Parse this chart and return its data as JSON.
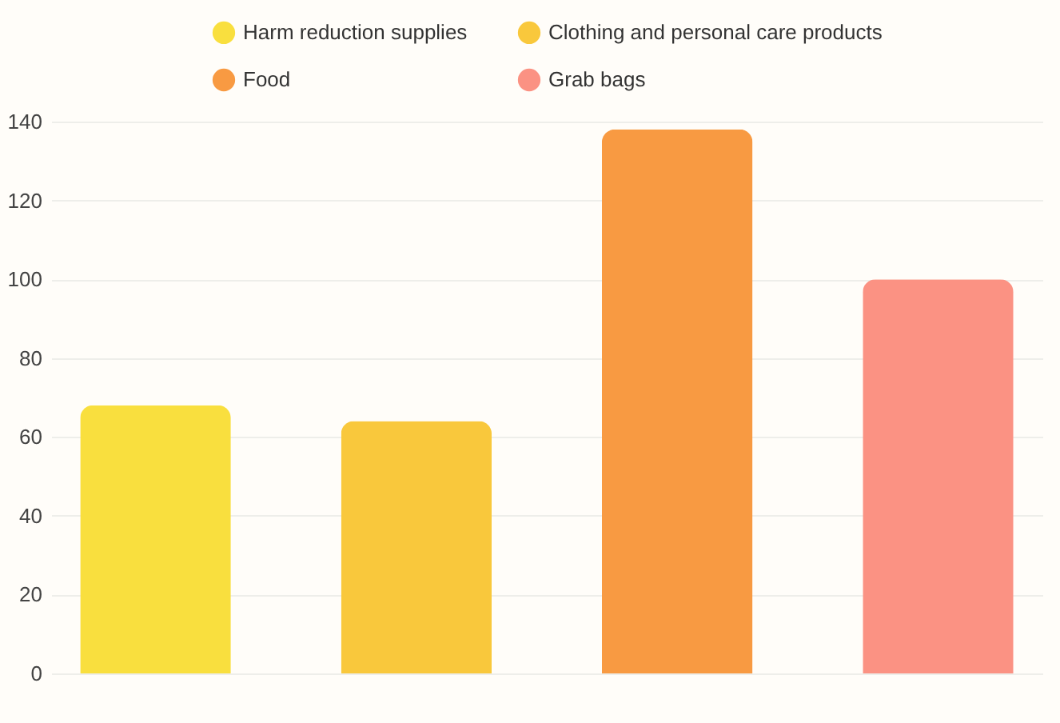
{
  "chart_data": {
    "type": "bar",
    "categories": [
      null,
      null,
      null,
      null
    ],
    "series": [
      {
        "name": "Harm reduction supplies",
        "color": "#f9df3e",
        "values": [
          68,
          null,
          null,
          null
        ]
      },
      {
        "name": "Clothing and personal care products",
        "color": "#f9c83c",
        "values": [
          null,
          64,
          null,
          null
        ]
      },
      {
        "name": "Food",
        "color": "#f89a42",
        "values": [
          null,
          null,
          138,
          null
        ]
      },
      {
        "name": "Grab bags",
        "color": "#fb9283",
        "values": [
          null,
          null,
          null,
          100
        ]
      }
    ],
    "ylim": [
      0,
      140
    ],
    "yticks": [
      0,
      20,
      40,
      60,
      80,
      100,
      120,
      140
    ],
    "grid": "y",
    "legend": "top",
    "tick_labels": "y"
  }
}
